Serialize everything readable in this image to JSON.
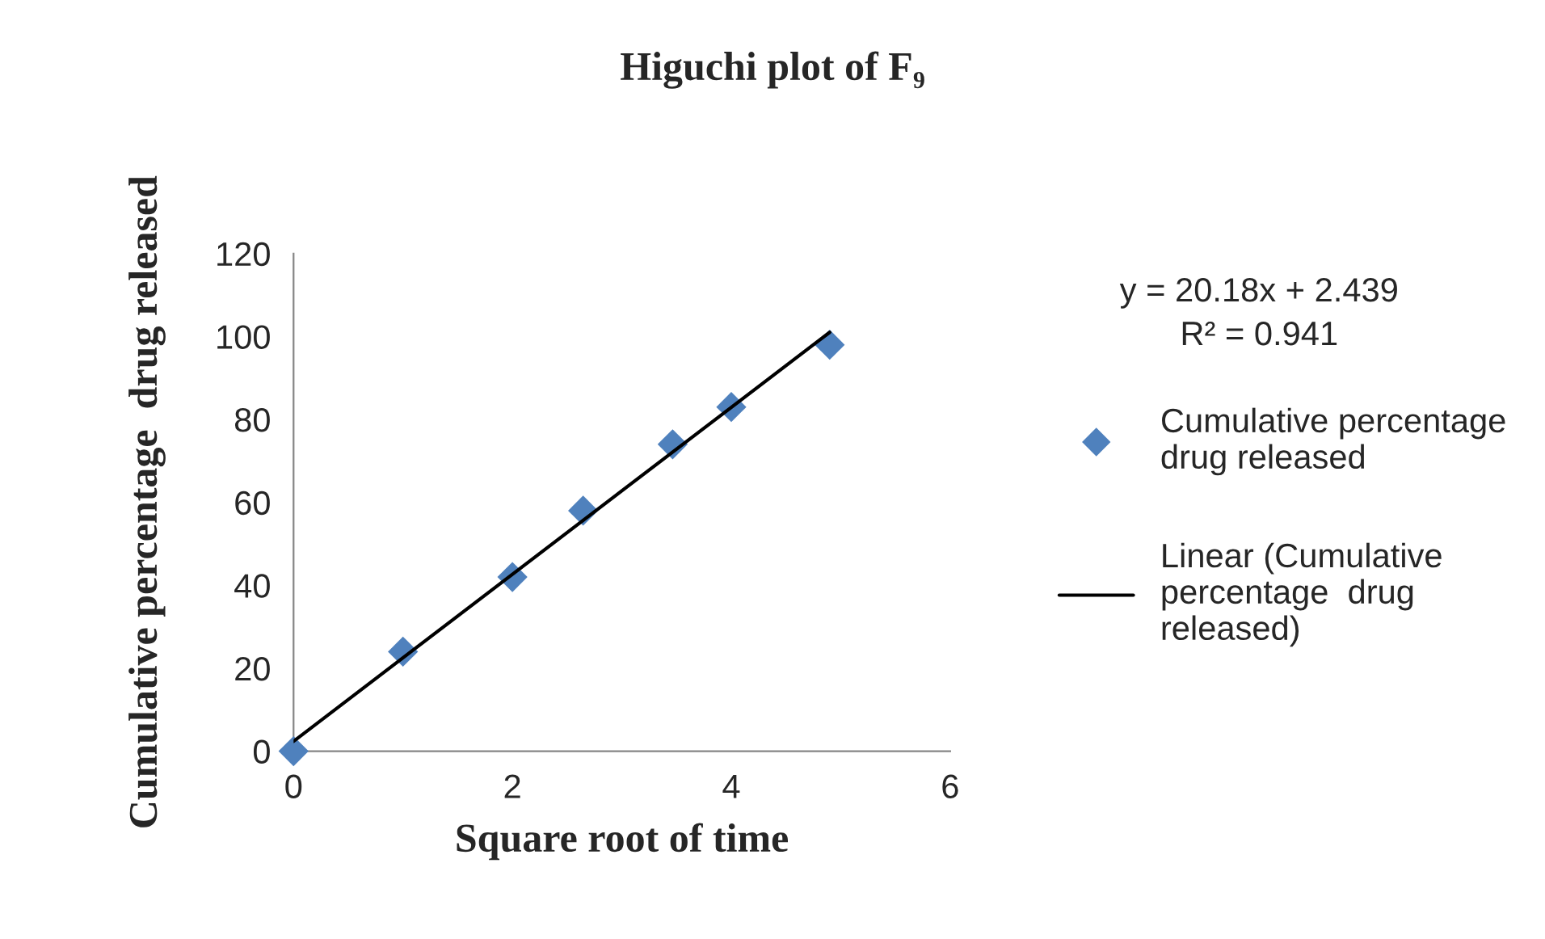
{
  "chart_data": {
    "type": "scatter",
    "title": "Higuchi plot of F₉",
    "xlabel": "Square root of time",
    "ylabel": "Cumulative percentage  drug released",
    "series": [
      {
        "name": "Cumulative percentage drug released",
        "color": "#4f81bd",
        "marker": "diamond",
        "x": [
          0,
          1,
          2,
          2.646,
          3.464,
          4,
          4.899
        ],
        "values": [
          0,
          24,
          42,
          58,
          74,
          83,
          98
        ]
      },
      {
        "name": "Linear (Cumulative percentage  drug released)",
        "type": "line",
        "color": "#000000",
        "marker": "none",
        "line_style": "solid",
        "x": [
          0,
          4.899
        ],
        "values": [
          2.4,
          101
        ]
      }
    ],
    "annotations": [
      "y = 20.18x + 2.439\nR² = 0.941"
    ],
    "xlim": [
      0,
      6
    ],
    "xticks": [
      0,
      2,
      4,
      6
    ],
    "ylim": [
      0,
      120
    ],
    "yticks": [
      0,
      20,
      40,
      60,
      80,
      100,
      120
    ],
    "grid": false,
    "legend": "right"
  }
}
